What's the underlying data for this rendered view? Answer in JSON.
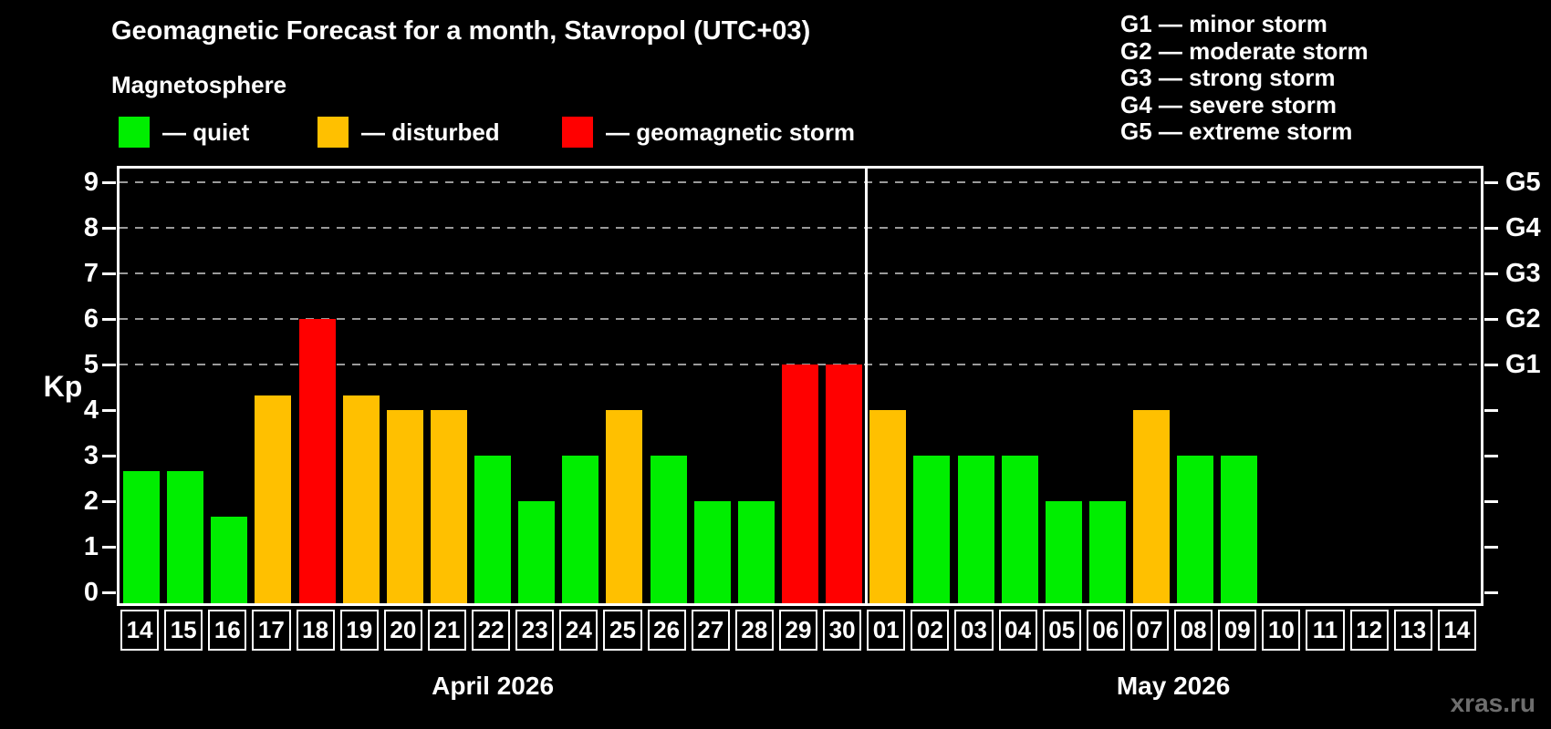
{
  "title": "Geomagnetic Forecast for a month, Stavropol (UTC+03)",
  "subtitle": "Magnetosphere",
  "legend": [
    {
      "state": "quiet",
      "label": "— quiet",
      "color": "#00ee00"
    },
    {
      "state": "disturbed",
      "label": "— disturbed",
      "color": "#ffc000"
    },
    {
      "state": "storm",
      "label": "— geomagnetic storm",
      "color": "#ff0000"
    }
  ],
  "storm_scale_legend": [
    {
      "code": "G1",
      "label": "G1 — minor storm"
    },
    {
      "code": "G2",
      "label": "G2 — moderate storm"
    },
    {
      "code": "G3",
      "label": "G3 — strong storm"
    },
    {
      "code": "G4",
      "label": "G4 — severe storm"
    },
    {
      "code": "G5",
      "label": "G5 — extreme storm"
    }
  ],
  "watermark": "xras.ru",
  "chart_data": {
    "type": "bar",
    "ylabel": "Kp",
    "ylim": [
      0,
      9
    ],
    "yticks": [
      0,
      1,
      2,
      3,
      4,
      5,
      6,
      7,
      8,
      9
    ],
    "gridlines_at": [
      5,
      6,
      7,
      8,
      9
    ],
    "grid_style": "dashed horizontal lines at storm levels only",
    "right_axis": [
      {
        "value": 5,
        "label": "G1"
      },
      {
        "value": 6,
        "label": "G2"
      },
      {
        "value": 7,
        "label": "G3"
      },
      {
        "value": 8,
        "label": "G4"
      },
      {
        "value": 9,
        "label": "G5"
      }
    ],
    "colors": {
      "quiet": "#00ee00",
      "disturbed": "#ffc000",
      "storm": "#ff0000"
    },
    "months": [
      {
        "label": "April 2026",
        "days": [
          {
            "day": "14",
            "kp": 2.67,
            "state": "quiet"
          },
          {
            "day": "15",
            "kp": 2.67,
            "state": "quiet"
          },
          {
            "day": "16",
            "kp": 1.67,
            "state": "quiet"
          },
          {
            "day": "17",
            "kp": 4.33,
            "state": "disturbed"
          },
          {
            "day": "18",
            "kp": 6,
            "state": "storm"
          },
          {
            "day": "19",
            "kp": 4.33,
            "state": "disturbed"
          },
          {
            "day": "20",
            "kp": 4,
            "state": "disturbed"
          },
          {
            "day": "21",
            "kp": 4,
            "state": "disturbed"
          },
          {
            "day": "22",
            "kp": 3,
            "state": "quiet"
          },
          {
            "day": "23",
            "kp": 2,
            "state": "quiet"
          },
          {
            "day": "24",
            "kp": 3,
            "state": "quiet"
          },
          {
            "day": "25",
            "kp": 4,
            "state": "disturbed"
          },
          {
            "day": "26",
            "kp": 3,
            "state": "quiet"
          },
          {
            "day": "27",
            "kp": 2,
            "state": "quiet"
          },
          {
            "day": "28",
            "kp": 2,
            "state": "quiet"
          },
          {
            "day": "29",
            "kp": 5,
            "state": "storm"
          },
          {
            "day": "30",
            "kp": 5,
            "state": "storm"
          }
        ]
      },
      {
        "label": "May 2026",
        "days": [
          {
            "day": "01",
            "kp": 4,
            "state": "disturbed"
          },
          {
            "day": "02",
            "kp": 3,
            "state": "quiet"
          },
          {
            "day": "03",
            "kp": 3,
            "state": "quiet"
          },
          {
            "day": "04",
            "kp": 3,
            "state": "quiet"
          },
          {
            "day": "05",
            "kp": 2,
            "state": "quiet"
          },
          {
            "day": "06",
            "kp": 2,
            "state": "quiet"
          },
          {
            "day": "07",
            "kp": 4,
            "state": "disturbed"
          },
          {
            "day": "08",
            "kp": 3,
            "state": "quiet"
          },
          {
            "day": "09",
            "kp": 3,
            "state": "quiet"
          },
          {
            "day": "10",
            "kp": null,
            "state": "none"
          },
          {
            "day": "11",
            "kp": null,
            "state": "none"
          },
          {
            "day": "12",
            "kp": null,
            "state": "none"
          },
          {
            "day": "13",
            "kp": null,
            "state": "none"
          },
          {
            "day": "14",
            "kp": null,
            "state": "none"
          }
        ]
      }
    ]
  }
}
